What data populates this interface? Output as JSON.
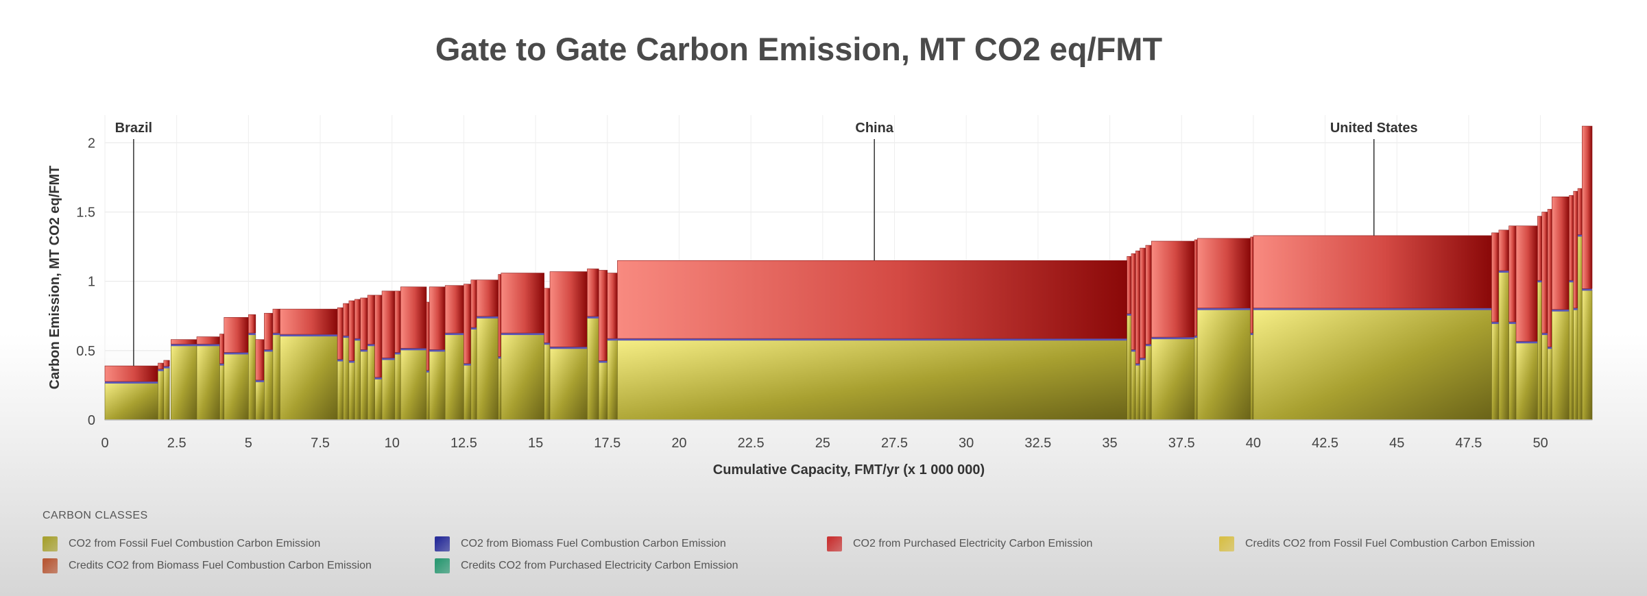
{
  "chart_data": {
    "type": "bar",
    "title": "Gate to Gate Carbon Emission, MT CO2 eq/FMT",
    "xlabel": "Cumulative Capacity, FMT/yr (x 1 000 000)",
    "ylabel": "Carbon Emission, MT CO2 eq/FMT",
    "xlim": [
      0,
      51.8
    ],
    "ylim": [
      0,
      2.15
    ],
    "x_ticks": [
      "0",
      "2.5",
      "5",
      "7.5",
      "10",
      "12.5",
      "15",
      "17.5",
      "20",
      "22.5",
      "25",
      "27.5",
      "30",
      "32.5",
      "35",
      "37.5",
      "40",
      "42.5",
      "45",
      "47.5",
      "50"
    ],
    "y_ticks": [
      "0",
      "0.5",
      "1",
      "1.5",
      "2"
    ],
    "grid": true,
    "legend_position": "bottom",
    "legend_title": "CARBON CLASSES",
    "series": [
      {
        "name": "CO2 from Fossil Fuel Combustion Carbon Emission",
        "color": "#a8a233"
      },
      {
        "name": "CO2 from Biomass Fuel Combustion Carbon Emission",
        "color": "#2a2f9a"
      },
      {
        "name": "CO2 from Purchased Electricity Carbon Emission",
        "color": "#c93535"
      },
      {
        "name": "Credits CO2 from Fossil Fuel Combustion Carbon Emission",
        "color": "#d8c04a"
      },
      {
        "name": "Credits CO2 from Biomass Fuel Combustion Carbon Emission",
        "color": "#b85a38"
      },
      {
        "name": "Credits CO2 from Purchased Electricity Carbon Emission",
        "color": "#2e9a74"
      }
    ],
    "annotations": [
      {
        "label": "Brazil",
        "x": 1.0
      },
      {
        "label": "China",
        "x": 26.8
      },
      {
        "label": "United States",
        "x": 44.2
      }
    ],
    "bars": [
      {
        "x0": 0.0,
        "x1": 1.85,
        "fossil": 0.27,
        "electricity": 0.12
      },
      {
        "x0": 1.85,
        "x1": 2.05,
        "fossil": 0.36,
        "electricity": 0.05
      },
      {
        "x0": 2.05,
        "x1": 2.25,
        "fossil": 0.38,
        "electricity": 0.05
      },
      {
        "x0": 2.3,
        "x1": 3.2,
        "fossil": 0.54,
        "electricity": 0.04
      },
      {
        "x0": 3.2,
        "x1": 4.0,
        "fossil": 0.54,
        "electricity": 0.06
      },
      {
        "x0": 4.0,
        "x1": 4.15,
        "fossil": 0.4,
        "electricity": 0.22
      },
      {
        "x0": 4.15,
        "x1": 5.0,
        "fossil": 0.48,
        "electricity": 0.26
      },
      {
        "x0": 5.0,
        "x1": 5.25,
        "fossil": 0.62,
        "electricity": 0.14
      },
      {
        "x0": 5.25,
        "x1": 5.55,
        "fossil": 0.28,
        "electricity": 0.3
      },
      {
        "x0": 5.55,
        "x1": 5.85,
        "fossil": 0.5,
        "electricity": 0.27
      },
      {
        "x0": 5.85,
        "x1": 6.1,
        "fossil": 0.62,
        "electricity": 0.18
      },
      {
        "x0": 6.1,
        "x1": 8.1,
        "fossil": 0.61,
        "electricity": 0.19
      },
      {
        "x0": 8.1,
        "x1": 8.3,
        "fossil": 0.43,
        "electricity": 0.38
      },
      {
        "x0": 8.3,
        "x1": 8.5,
        "fossil": 0.6,
        "electricity": 0.24
      },
      {
        "x0": 8.5,
        "x1": 8.7,
        "fossil": 0.42,
        "electricity": 0.44
      },
      {
        "x0": 8.7,
        "x1": 8.9,
        "fossil": 0.58,
        "electricity": 0.29
      },
      {
        "x0": 8.9,
        "x1": 9.15,
        "fossil": 0.5,
        "electricity": 0.38
      },
      {
        "x0": 9.15,
        "x1": 9.4,
        "fossil": 0.54,
        "electricity": 0.36
      },
      {
        "x0": 9.4,
        "x1": 9.65,
        "fossil": 0.3,
        "electricity": 0.6
      },
      {
        "x0": 9.65,
        "x1": 10.1,
        "fossil": 0.44,
        "electricity": 0.49
      },
      {
        "x0": 10.1,
        "x1": 10.3,
        "fossil": 0.48,
        "electricity": 0.45
      },
      {
        "x0": 10.3,
        "x1": 11.2,
        "fossil": 0.51,
        "electricity": 0.45
      },
      {
        "x0": 11.2,
        "x1": 11.3,
        "fossil": 0.35,
        "electricity": 0.5
      },
      {
        "x0": 11.3,
        "x1": 11.85,
        "fossil": 0.5,
        "electricity": 0.46
      },
      {
        "x0": 11.85,
        "x1": 12.5,
        "fossil": 0.62,
        "electricity": 0.35
      },
      {
        "x0": 12.5,
        "x1": 12.75,
        "fossil": 0.4,
        "electricity": 0.58
      },
      {
        "x0": 12.75,
        "x1": 12.95,
        "fossil": 0.66,
        "electricity": 0.35
      },
      {
        "x0": 12.95,
        "x1": 13.7,
        "fossil": 0.74,
        "electricity": 0.27
      },
      {
        "x0": 13.7,
        "x1": 13.8,
        "fossil": 0.45,
        "electricity": 0.6
      },
      {
        "x0": 13.8,
        "x1": 15.3,
        "fossil": 0.62,
        "electricity": 0.44
      },
      {
        "x0": 15.3,
        "x1": 15.5,
        "fossil": 0.55,
        "electricity": 0.4
      },
      {
        "x0": 15.5,
        "x1": 16.8,
        "fossil": 0.52,
        "electricity": 0.55
      },
      {
        "x0": 16.8,
        "x1": 17.2,
        "fossil": 0.74,
        "electricity": 0.35
      },
      {
        "x0": 17.2,
        "x1": 17.5,
        "fossil": 0.42,
        "electricity": 0.66
      },
      {
        "x0": 17.5,
        "x1": 17.85,
        "fossil": 0.58,
        "electricity": 0.48
      },
      {
        "x0": 17.85,
        "x1": 35.6,
        "fossil": 0.58,
        "electricity": 0.57
      },
      {
        "x0": 35.6,
        "x1": 35.75,
        "fossil": 0.76,
        "electricity": 0.42
      },
      {
        "x0": 35.75,
        "x1": 35.9,
        "fossil": 0.5,
        "electricity": 0.7
      },
      {
        "x0": 35.9,
        "x1": 36.05,
        "fossil": 0.4,
        "electricity": 0.82
      },
      {
        "x0": 36.05,
        "x1": 36.25,
        "fossil": 0.44,
        "electricity": 0.8
      },
      {
        "x0": 36.25,
        "x1": 36.45,
        "fossil": 0.54,
        "electricity": 0.72
      },
      {
        "x0": 36.45,
        "x1": 37.95,
        "fossil": 0.59,
        "electricity": 0.7
      },
      {
        "x0": 37.95,
        "x1": 38.05,
        "fossil": 0.6,
        "electricity": 0.7
      },
      {
        "x0": 38.05,
        "x1": 39.9,
        "fossil": 0.8,
        "electricity": 0.51
      },
      {
        "x0": 39.9,
        "x1": 40.0,
        "fossil": 0.62,
        "electricity": 0.7
      },
      {
        "x0": 40.0,
        "x1": 48.3,
        "fossil": 0.8,
        "electricity": 0.53
      },
      {
        "x0": 48.3,
        "x1": 48.55,
        "fossil": 0.7,
        "electricity": 0.65
      },
      {
        "x0": 48.55,
        "x1": 48.9,
        "fossil": 1.07,
        "electricity": 0.3
      },
      {
        "x0": 48.9,
        "x1": 49.15,
        "fossil": 0.7,
        "electricity": 0.7
      },
      {
        "x0": 49.15,
        "x1": 49.9,
        "fossil": 0.56,
        "electricity": 0.84
      },
      {
        "x0": 49.9,
        "x1": 50.05,
        "fossil": 1.0,
        "electricity": 0.47
      },
      {
        "x0": 50.05,
        "x1": 50.25,
        "fossil": 0.62,
        "electricity": 0.88
      },
      {
        "x0": 50.25,
        "x1": 50.4,
        "fossil": 0.52,
        "electricity": 1.0
      },
      {
        "x0": 50.4,
        "x1": 51.0,
        "fossil": 0.79,
        "electricity": 0.82
      },
      {
        "x0": 51.0,
        "x1": 51.15,
        "fossil": 1.0,
        "electricity": 0.62
      },
      {
        "x0": 51.15,
        "x1": 51.3,
        "fossil": 0.8,
        "electricity": 0.85
      },
      {
        "x0": 51.3,
        "x1": 51.45,
        "fossil": 1.33,
        "electricity": 0.34
      },
      {
        "x0": 51.45,
        "x1": 51.8,
        "fossil": 0.94,
        "electricity": 1.18
      }
    ]
  }
}
